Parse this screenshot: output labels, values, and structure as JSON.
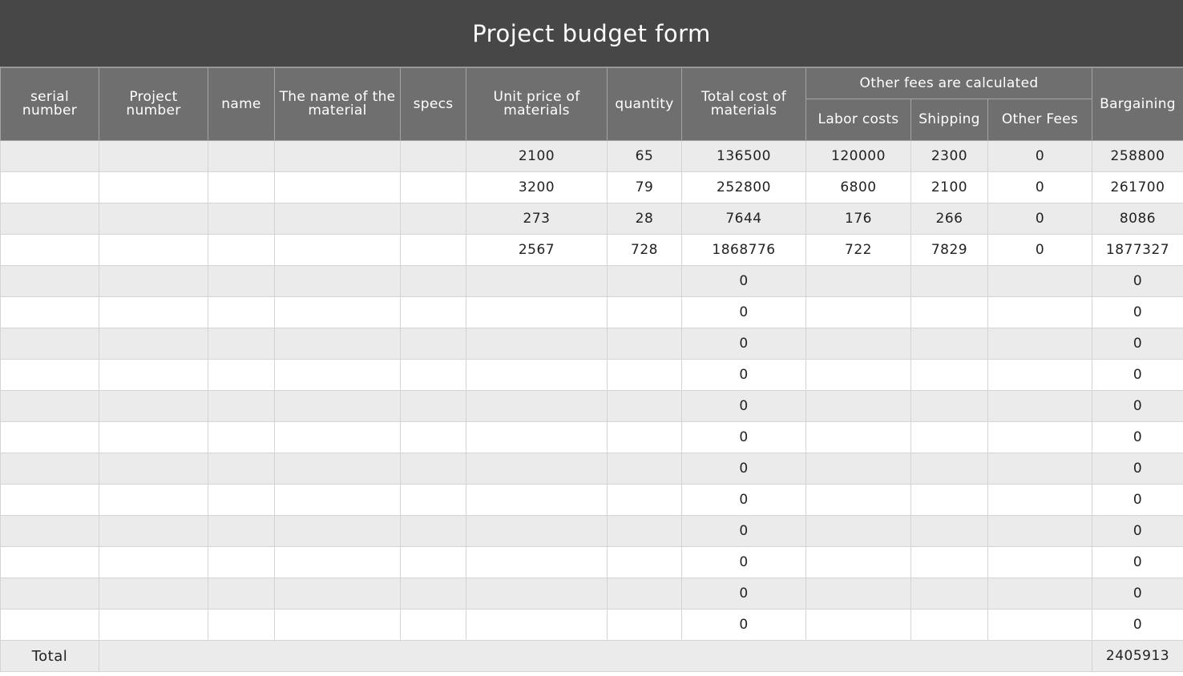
{
  "title": "Project budget form",
  "headers": {
    "serial_number": "serial number",
    "project_number": "Project number",
    "name": "name",
    "material_name": "The name of the material",
    "specs": "specs",
    "unit_price": "Unit price of materials",
    "quantity": "quantity",
    "total_cost": "Total cost of materials",
    "other_fees_group": "Other fees are calculated",
    "labor_costs": "Labor costs",
    "shipping": "Shipping",
    "other_fees": "Other Fees",
    "bargaining": "Bargaining"
  },
  "rows": [
    {
      "serial": "",
      "project": "",
      "name": "",
      "material": "",
      "specs": "",
      "unit_price": "2100",
      "quantity": "65",
      "total_cost": "136500",
      "labor": "120000",
      "shipping": "2300",
      "other": "0",
      "bargaining": "258800"
    },
    {
      "serial": "",
      "project": "",
      "name": "",
      "material": "",
      "specs": "",
      "unit_price": "3200",
      "quantity": "79",
      "total_cost": "252800",
      "labor": "6800",
      "shipping": "2100",
      "other": "0",
      "bargaining": "261700"
    },
    {
      "serial": "",
      "project": "",
      "name": "",
      "material": "",
      "specs": "",
      "unit_price": "273",
      "quantity": "28",
      "total_cost": "7644",
      "labor": "176",
      "shipping": "266",
      "other": "0",
      "bargaining": "8086"
    },
    {
      "serial": "",
      "project": "",
      "name": "",
      "material": "",
      "specs": "",
      "unit_price": "2567",
      "quantity": "728",
      "total_cost": "1868776",
      "labor": "722",
      "shipping": "7829",
      "other": "0",
      "bargaining": "1877327"
    },
    {
      "serial": "",
      "project": "",
      "name": "",
      "material": "",
      "specs": "",
      "unit_price": "",
      "quantity": "",
      "total_cost": "0",
      "labor": "",
      "shipping": "",
      "other": "",
      "bargaining": "0"
    },
    {
      "serial": "",
      "project": "",
      "name": "",
      "material": "",
      "specs": "",
      "unit_price": "",
      "quantity": "",
      "total_cost": "0",
      "labor": "",
      "shipping": "",
      "other": "",
      "bargaining": "0"
    },
    {
      "serial": "",
      "project": "",
      "name": "",
      "material": "",
      "specs": "",
      "unit_price": "",
      "quantity": "",
      "total_cost": "0",
      "labor": "",
      "shipping": "",
      "other": "",
      "bargaining": "0"
    },
    {
      "serial": "",
      "project": "",
      "name": "",
      "material": "",
      "specs": "",
      "unit_price": "",
      "quantity": "",
      "total_cost": "0",
      "labor": "",
      "shipping": "",
      "other": "",
      "bargaining": "0"
    },
    {
      "serial": "",
      "project": "",
      "name": "",
      "material": "",
      "specs": "",
      "unit_price": "",
      "quantity": "",
      "total_cost": "0",
      "labor": "",
      "shipping": "",
      "other": "",
      "bargaining": "0"
    },
    {
      "serial": "",
      "project": "",
      "name": "",
      "material": "",
      "specs": "",
      "unit_price": "",
      "quantity": "",
      "total_cost": "0",
      "labor": "",
      "shipping": "",
      "other": "",
      "bargaining": "0"
    },
    {
      "serial": "",
      "project": "",
      "name": "",
      "material": "",
      "specs": "",
      "unit_price": "",
      "quantity": "",
      "total_cost": "0",
      "labor": "",
      "shipping": "",
      "other": "",
      "bargaining": "0"
    },
    {
      "serial": "",
      "project": "",
      "name": "",
      "material": "",
      "specs": "",
      "unit_price": "",
      "quantity": "",
      "total_cost": "0",
      "labor": "",
      "shipping": "",
      "other": "",
      "bargaining": "0"
    },
    {
      "serial": "",
      "project": "",
      "name": "",
      "material": "",
      "specs": "",
      "unit_price": "",
      "quantity": "",
      "total_cost": "0",
      "labor": "",
      "shipping": "",
      "other": "",
      "bargaining": "0"
    },
    {
      "serial": "",
      "project": "",
      "name": "",
      "material": "",
      "specs": "",
      "unit_price": "",
      "quantity": "",
      "total_cost": "0",
      "labor": "",
      "shipping": "",
      "other": "",
      "bargaining": "0"
    },
    {
      "serial": "",
      "project": "",
      "name": "",
      "material": "",
      "specs": "",
      "unit_price": "",
      "quantity": "",
      "total_cost": "0",
      "labor": "",
      "shipping": "",
      "other": "",
      "bargaining": "0"
    },
    {
      "serial": "",
      "project": "",
      "name": "",
      "material": "",
      "specs": "",
      "unit_price": "",
      "quantity": "",
      "total_cost": "0",
      "labor": "",
      "shipping": "",
      "other": "",
      "bargaining": "0"
    }
  ],
  "total": {
    "label": "Total",
    "bargaining": "2405913"
  },
  "colors": {
    "title_background": "#474747",
    "header_background": "#6f6f6f",
    "row_shaded": "#ebebeb",
    "row_plain": "#ffffff"
  }
}
